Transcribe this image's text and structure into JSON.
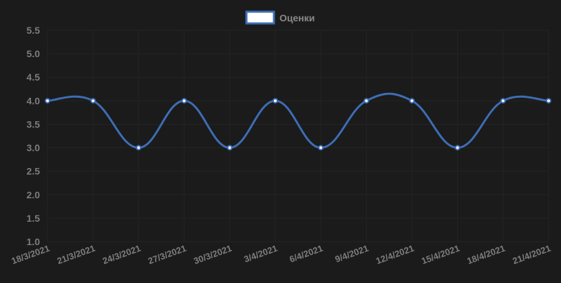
{
  "chart_data": {
    "type": "line",
    "title": "",
    "xlabel": "",
    "ylabel": "",
    "categories": [
      "18/3/2021",
      "21/3/2021",
      "24/3/2021",
      "27/3/2021",
      "30/3/2021",
      "3/4/2021",
      "6/4/2021",
      "9/4/2021",
      "12/4/2021",
      "15/4/2021",
      "18/4/2021",
      "21/4/2021"
    ],
    "series": [
      {
        "name": "Оценки",
        "values": [
          4.0,
          4.0,
          3.0,
          4.0,
          3.0,
          4.0,
          3.0,
          4.0,
          4.0,
          3.0,
          4.0,
          4.0
        ]
      }
    ],
    "ylim": [
      1.0,
      5.5
    ],
    "yticks": [
      "1.0",
      "1.5",
      "2.0",
      "2.5",
      "3.0",
      "3.5",
      "4.0",
      "4.5",
      "5.0",
      "5.5"
    ],
    "grid": true,
    "legend": "top-center",
    "colors": {
      "line": "#3d6db5",
      "background": "#1b1b1b",
      "grid": "#242424",
      "text": "#7d7d7d",
      "point_fill": "#ffffff"
    }
  }
}
